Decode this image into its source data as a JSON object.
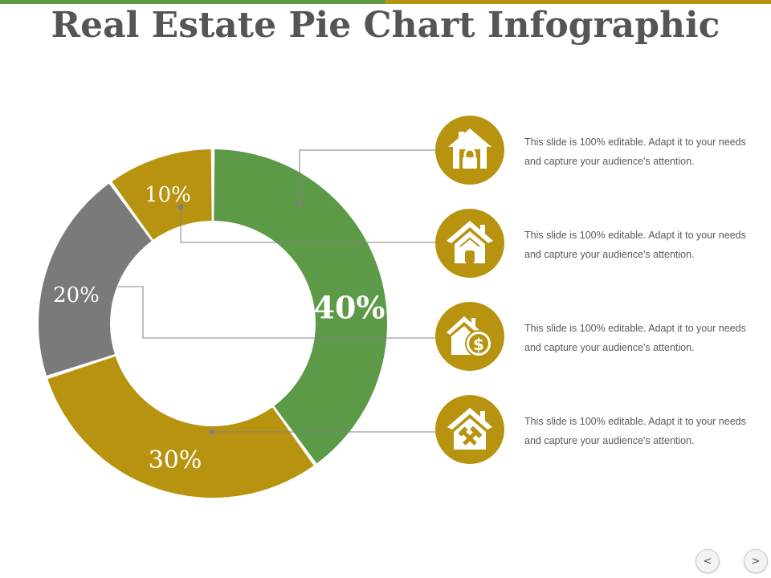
{
  "title": "Real Estate Pie Chart Infographic",
  "colors": {
    "green": "#5C9A47",
    "gold": "#B8930F",
    "gray": "#7A7A7A",
    "title_gray": "#555555"
  },
  "chart_data": {
    "type": "pie",
    "style": "donut",
    "categories": [
      "40%",
      "30%",
      "20%",
      "10%"
    ],
    "values": [
      40,
      30,
      20,
      10
    ],
    "labels": [
      "40%",
      "30%",
      "20%",
      "10%"
    ],
    "colors": [
      "#5C9A47",
      "#B8930F",
      "#7A7A7A",
      "#B8930F"
    ]
  },
  "info_items": [
    {
      "icon": "house-lock-icon",
      "text": "This slide is 100% editable. Adapt it to your needs and capture your audience's attention."
    },
    {
      "icon": "house-icon",
      "text": "This slide is 100% editable. Adapt it to your needs and capture your audience's attention."
    },
    {
      "icon": "house-dollar-icon",
      "text": "This slide is 100% editable. Adapt it to your needs and capture your audience's attention."
    },
    {
      "icon": "house-tools-icon",
      "text": "This slide is 100% editable. Adapt it to your needs and capture your audience's attention."
    }
  ],
  "nav": {
    "prev": "<",
    "next": ">"
  }
}
